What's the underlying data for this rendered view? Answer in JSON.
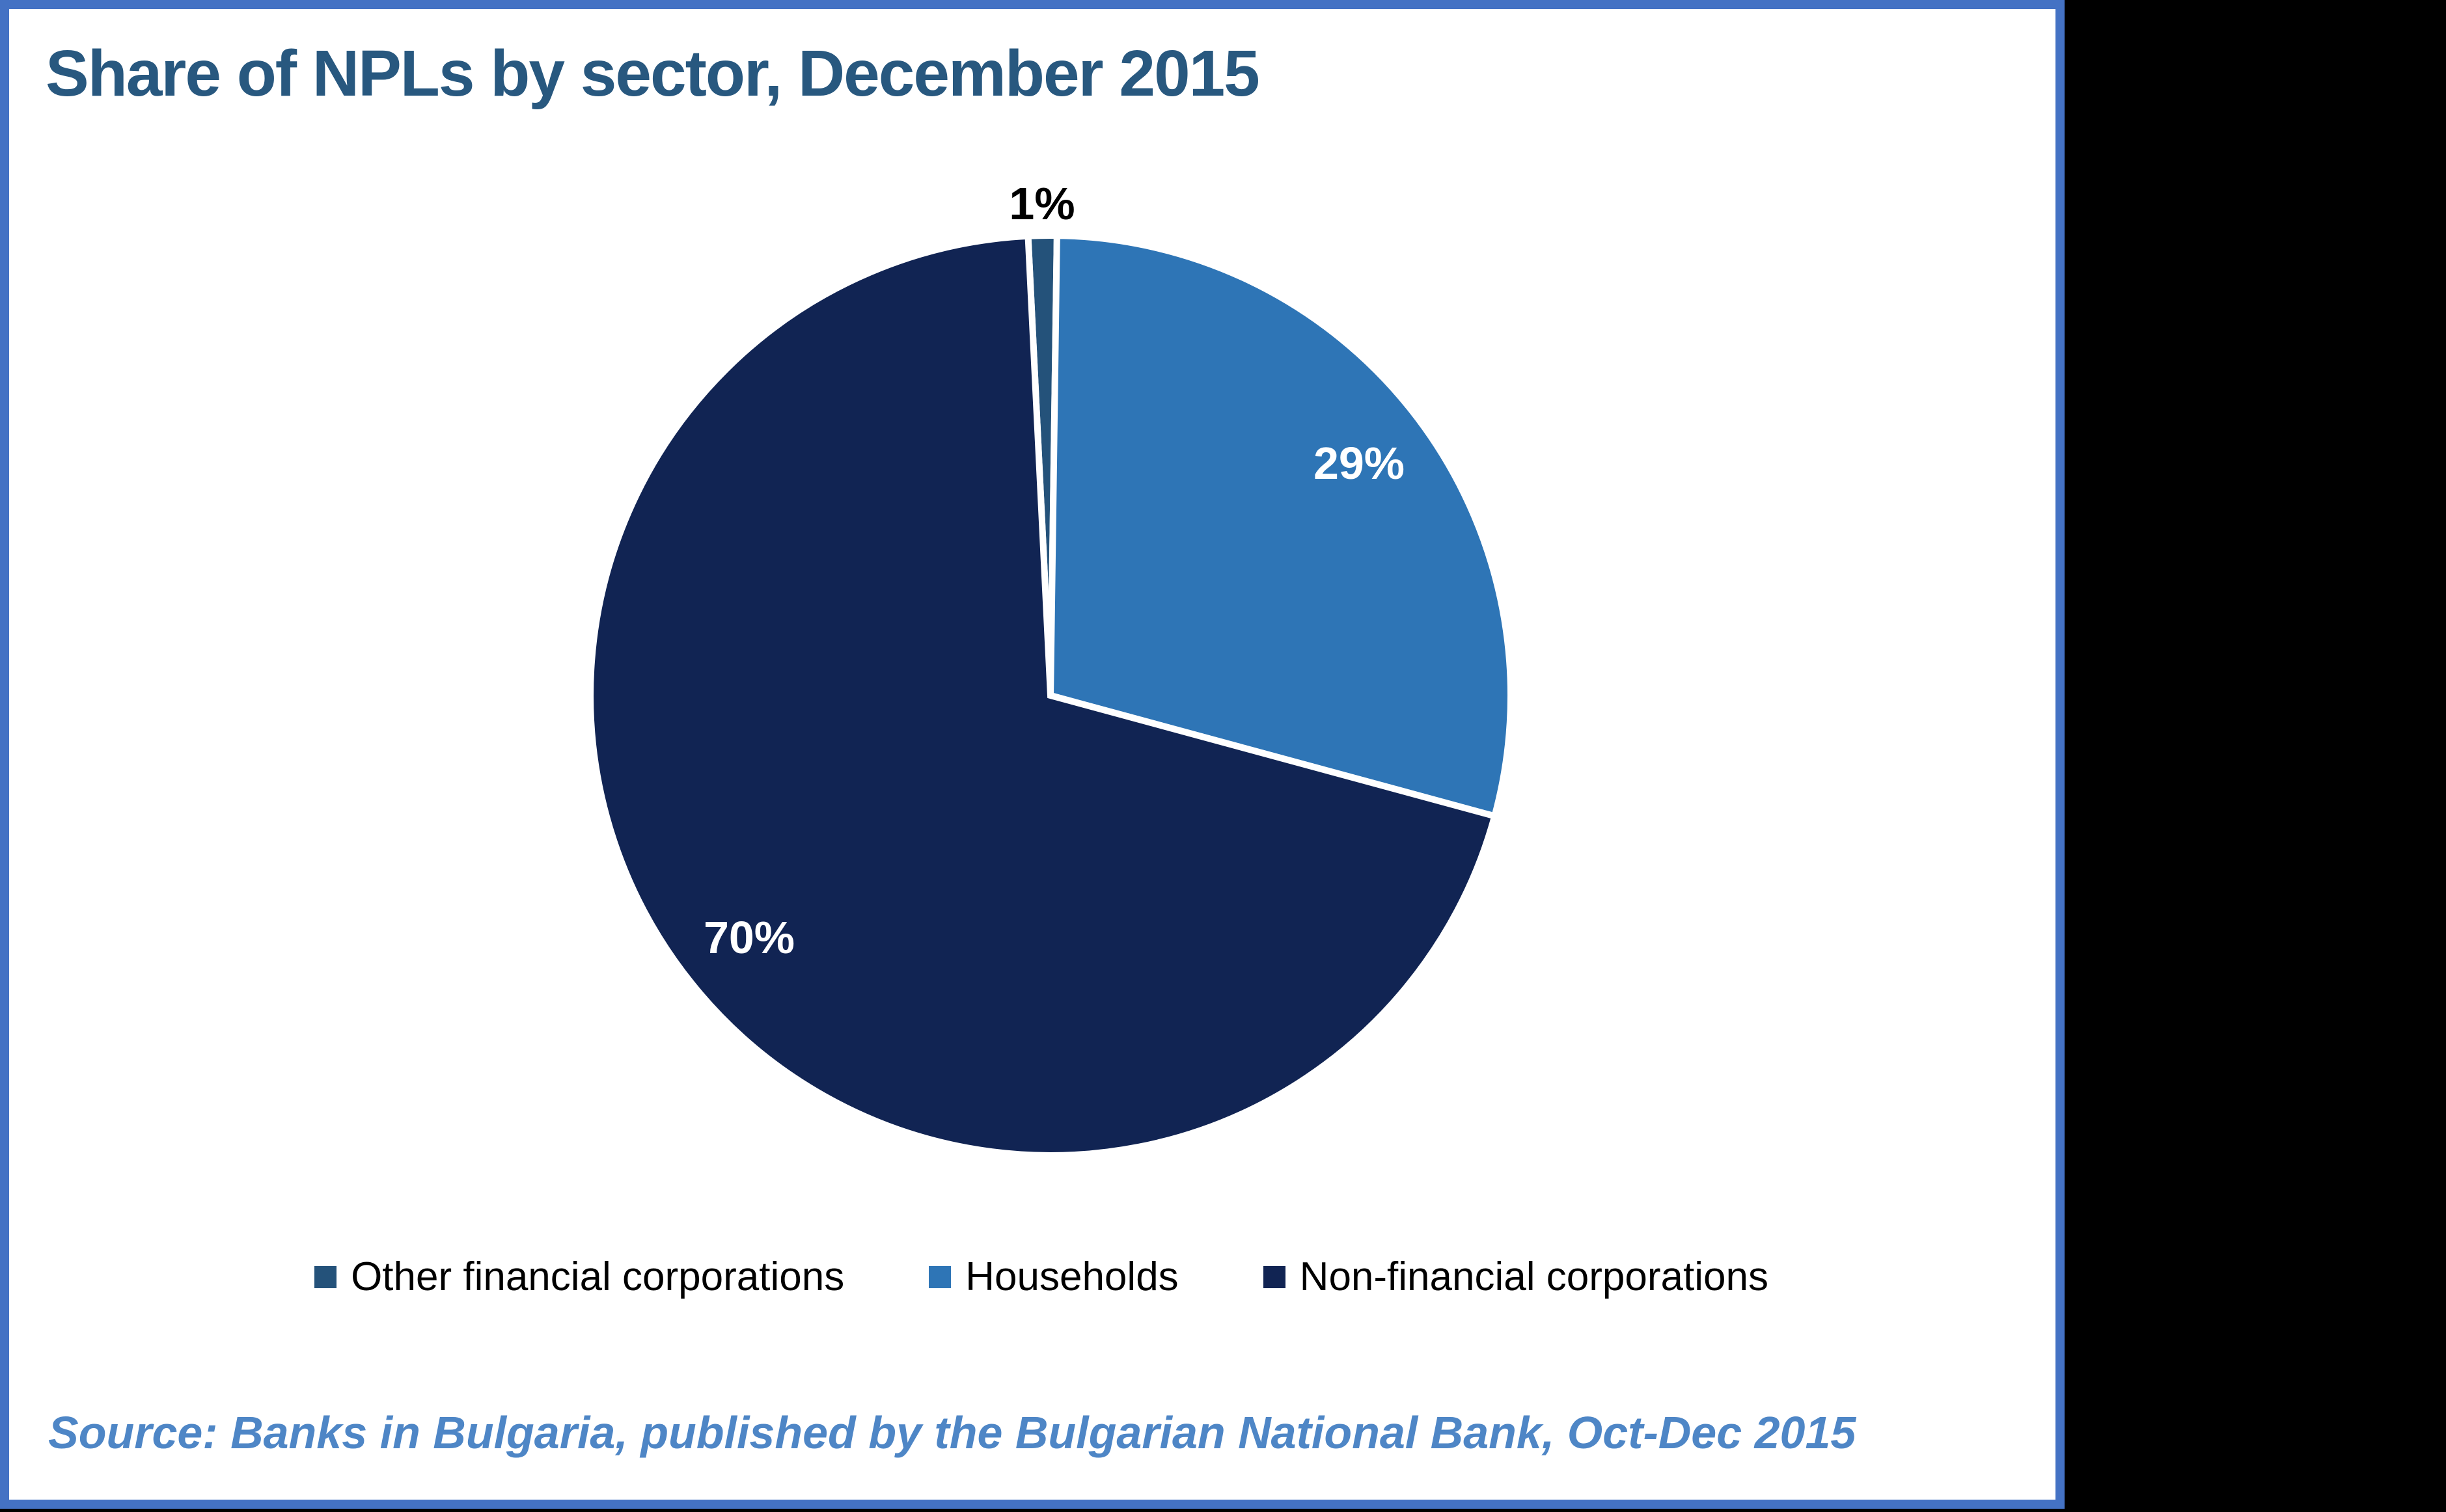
{
  "frame": {
    "border_color": "#4472C4",
    "card_background": "#FFFFFF",
    "outside_background": "#000000"
  },
  "title": {
    "text": "Share of NPLs by sector, December 2015",
    "color": "#28587F"
  },
  "chart_data": {
    "type": "pie",
    "title": "Share of NPLs by sector, December 2015",
    "slices": [
      {
        "label": "Other financial corporations",
        "value_pct": 1,
        "pct_label": "1%",
        "color": "#24527A",
        "pct_label_color": "#000000",
        "pct_label_placement": "outside"
      },
      {
        "label": "Households",
        "value_pct": 29,
        "pct_label": "29%",
        "color": "#2E75B6",
        "pct_label_color": "#FFFFFF",
        "pct_label_placement": "inside"
      },
      {
        "label": "Non-financial corporations",
        "value_pct": 70,
        "pct_label": "70%",
        "color": "#112453",
        "pct_label_color": "#FFFFFF",
        "pct_label_placement": "inside"
      }
    ],
    "start_angle_deg": -2.8,
    "direction": "clockwise",
    "slice_border_color": "#FFFFFF",
    "legend_position": "bottom",
    "grid": "off"
  },
  "source_note": {
    "text": "Source: Banks in Bulgaria, published by the Bulgarian National Bank, Oct-Dec 2015",
    "color": "#4E86C6"
  }
}
